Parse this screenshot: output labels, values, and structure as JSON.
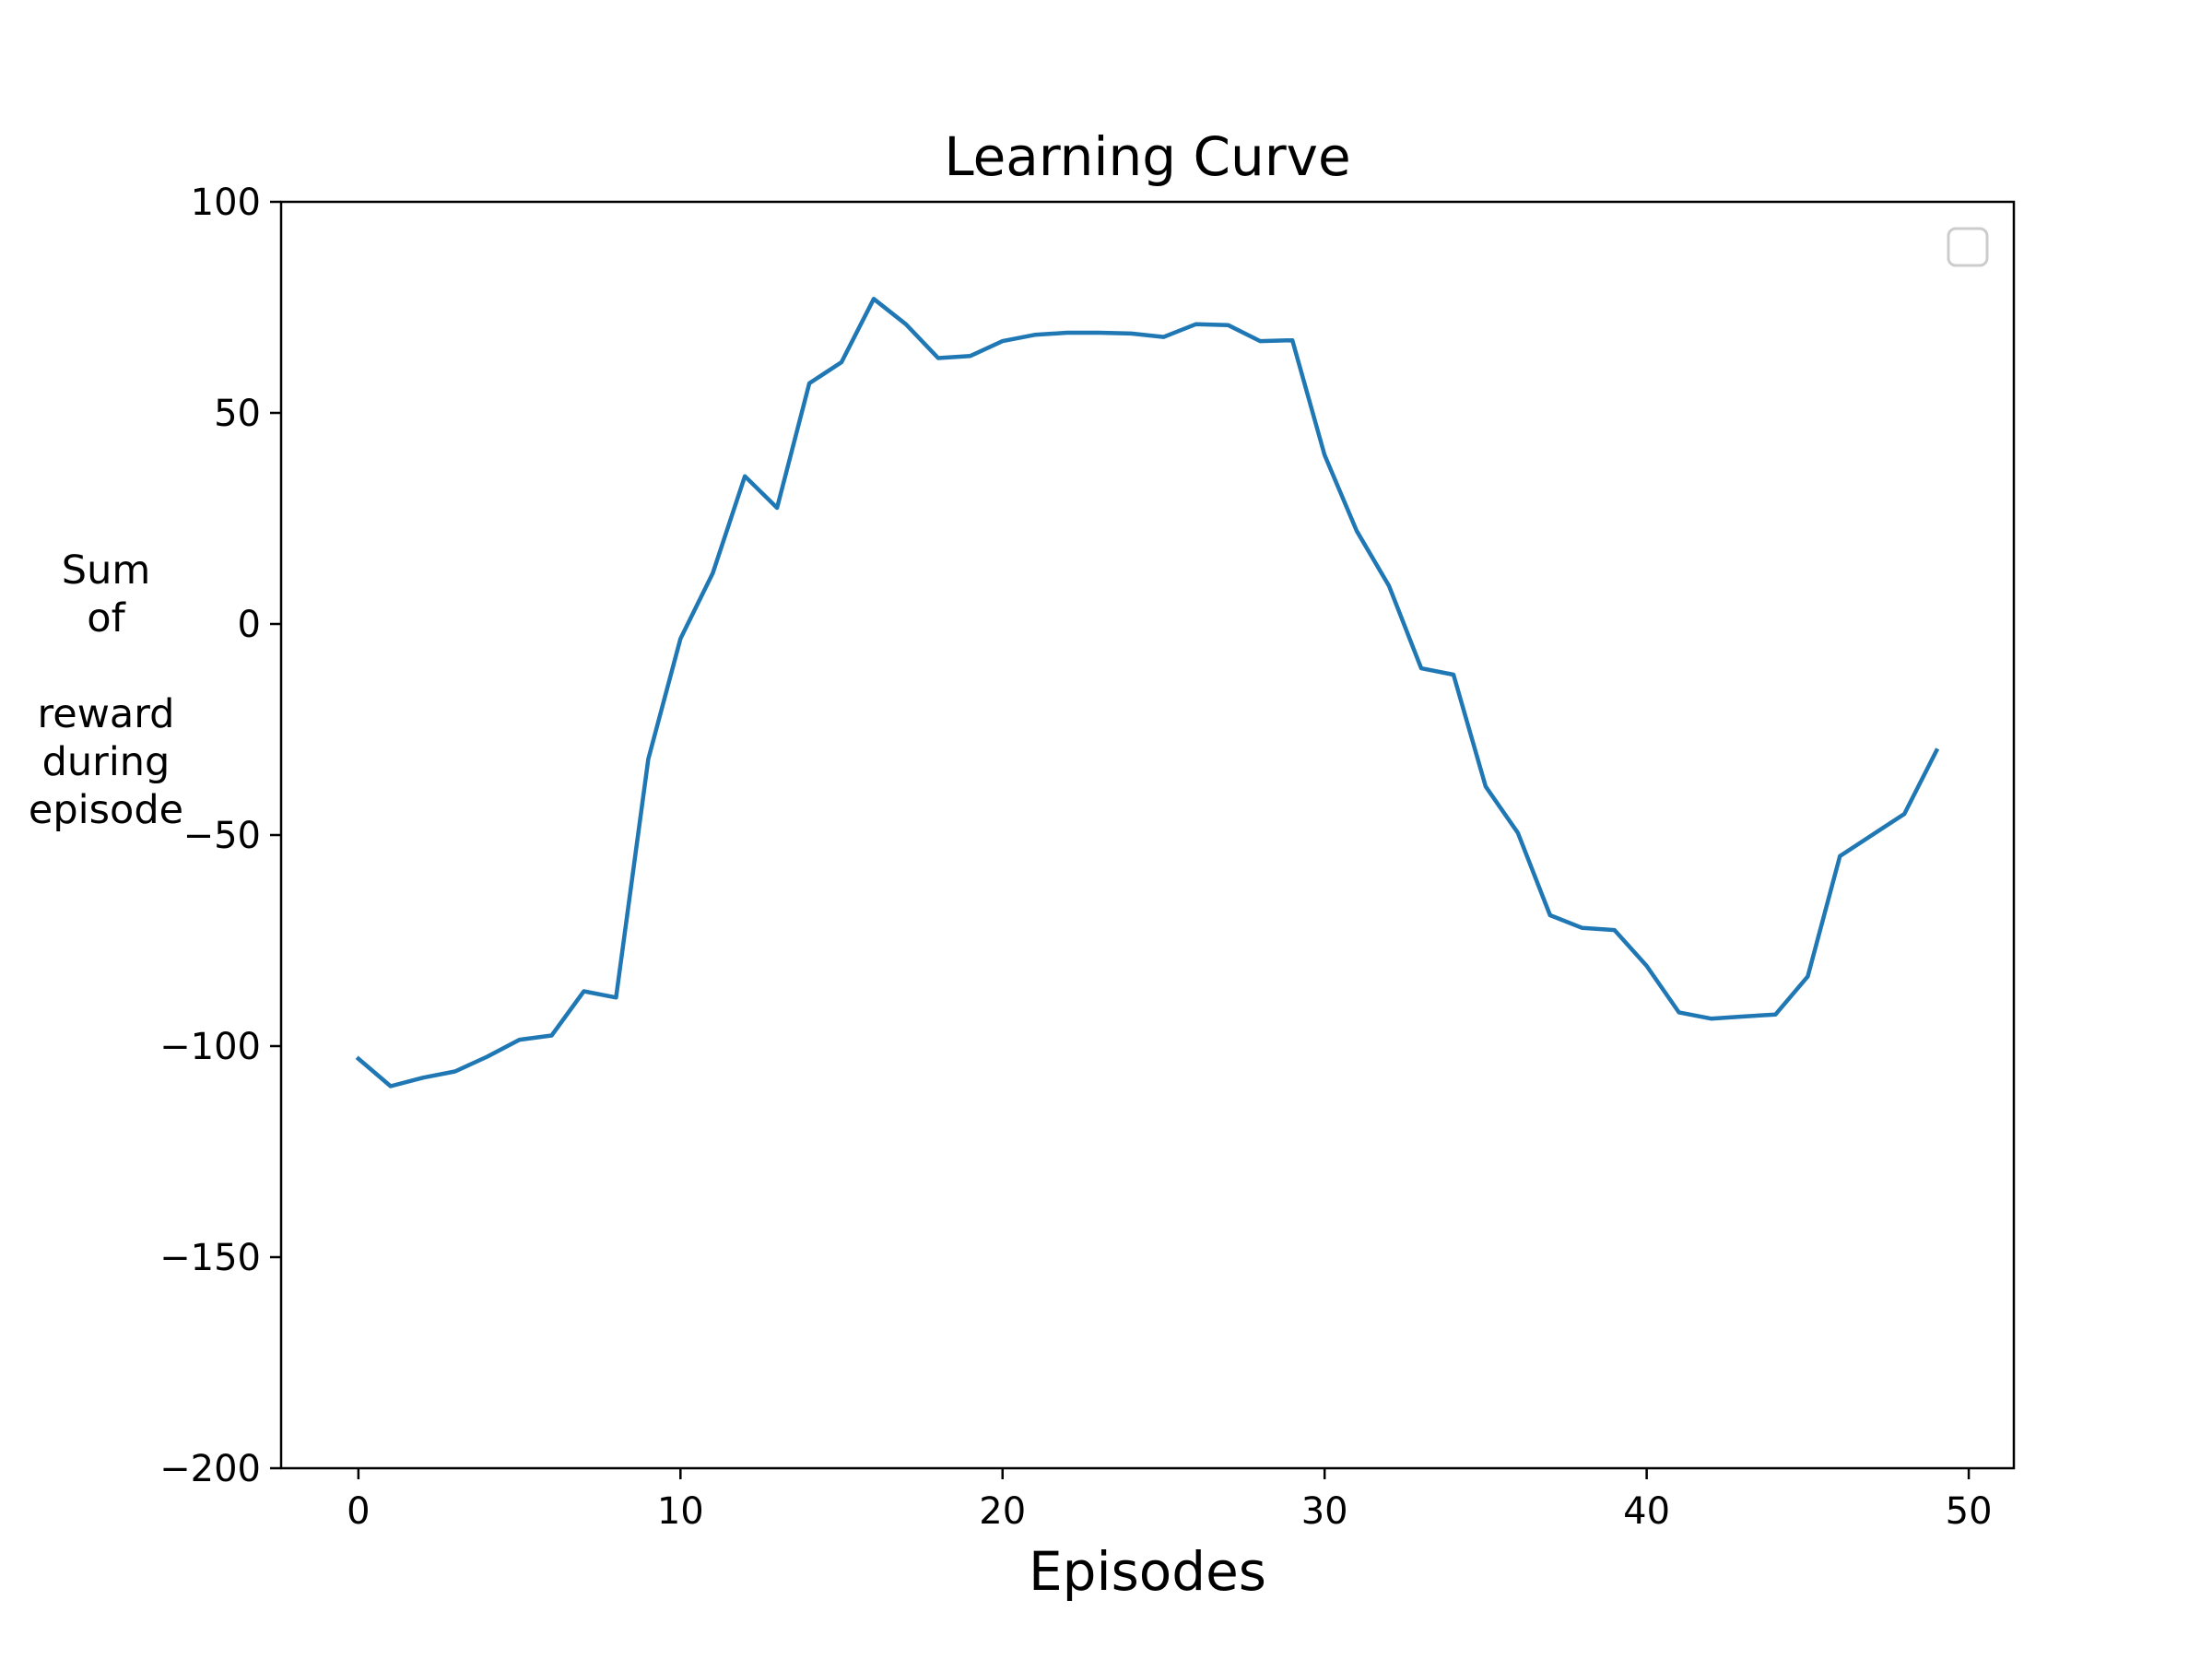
{
  "chart_data": {
    "type": "line",
    "title": "Learning Curve",
    "xlabel": "Episodes",
    "ylabel_lines": [
      "Sum",
      "of",
      "",
      "reward",
      "during",
      "episode"
    ],
    "xlim": [
      -2.4,
      51.4
    ],
    "ylim": [
      -200,
      100
    ],
    "xticks": [
      0,
      10,
      20,
      30,
      40,
      50
    ],
    "yticks": [
      100,
      50,
      0,
      -50,
      -100,
      -150,
      -200
    ],
    "xtick_labels": [
      "0",
      "10",
      "20",
      "30",
      "40",
      "50"
    ],
    "ytick_labels": [
      "100",
      "50",
      "0",
      "−50",
      "−100",
      "−150",
      "−200"
    ],
    "grid": false,
    "legend": "upper-right (empty)",
    "series": [
      {
        "color": "#1f77b4",
        "x": [
          0,
          1,
          2,
          3,
          4,
          5,
          6,
          7,
          8,
          9,
          10,
          11,
          12,
          13,
          14,
          15,
          16,
          17,
          18,
          19,
          20,
          21,
          22,
          23,
          24,
          25,
          26,
          27,
          28,
          29,
          30,
          31,
          32,
          33,
          34,
          35,
          36,
          37,
          38,
          39,
          40,
          41,
          42,
          43,
          44,
          45,
          46,
          47,
          48,
          49
        ],
        "y": [
          -103,
          -109.5,
          -107.5,
          -106,
          -102.5,
          -98.5,
          -97.5,
          -87,
          -88.5,
          -32,
          -3.5,
          12,
          35,
          27.5,
          57,
          62,
          77,
          71,
          63,
          63.5,
          67,
          68.5,
          69,
          69,
          68.8,
          68,
          71,
          70.8,
          67,
          67.2,
          40,
          22,
          9,
          -10.5,
          -12,
          -38.5,
          -49.5,
          -69,
          -72,
          -72.5,
          -81,
          -92,
          -93.5,
          -93,
          -92.5,
          -83.5,
          -55,
          -50,
          -45,
          -30
        ]
      }
    ]
  }
}
